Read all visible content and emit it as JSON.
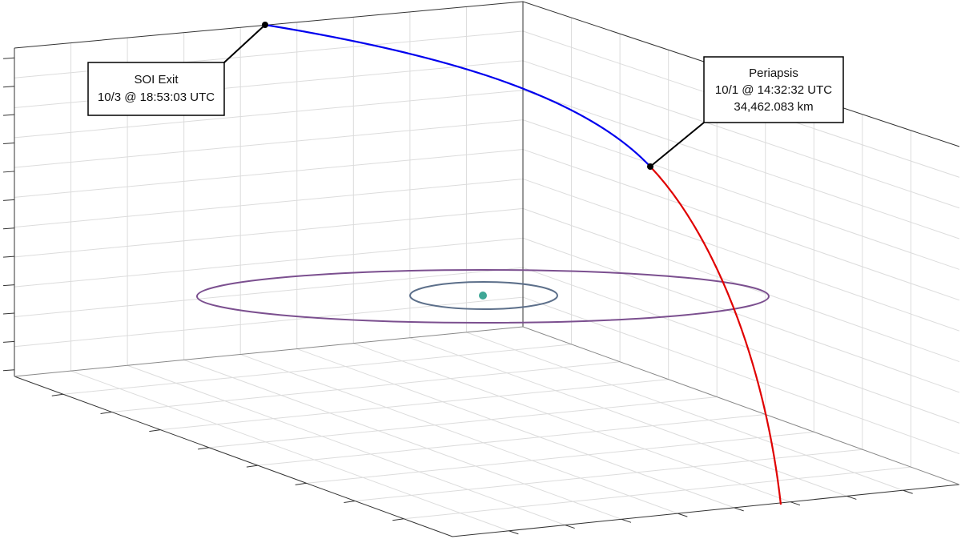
{
  "annotations": [
    {
      "lines": [
        "SOI Exit",
        "10/3 @ 18:53:03 UTC"
      ]
    },
    {
      "lines": [
        "Periapsis",
        "10/1 @ 14:32:32 UTC",
        "34,462.083 km"
      ]
    }
  ]
}
